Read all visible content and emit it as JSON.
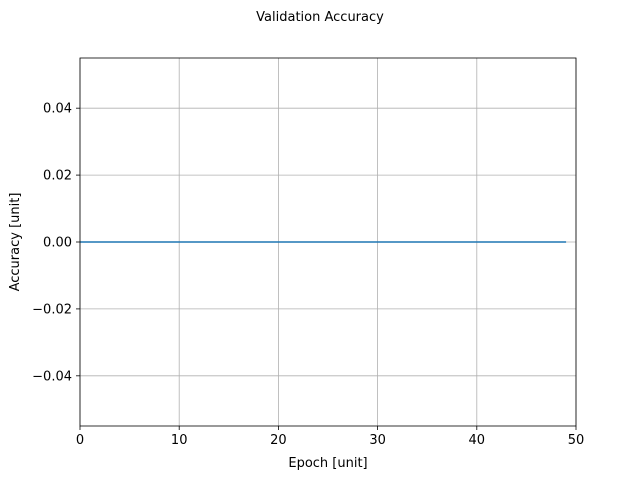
{
  "chart_data": {
    "type": "line",
    "title": "Validation Accuracy",
    "xlabel": "Epoch [unit]",
    "ylabel": "Accuracy [unit]",
    "xlim": [
      0,
      50
    ],
    "ylim": [
      -0.055,
      0.055
    ],
    "xticks": [
      0,
      10,
      20,
      30,
      40,
      50
    ],
    "xtick_labels": [
      "0",
      "10",
      "20",
      "30",
      "40",
      "50"
    ],
    "yticks": [
      -0.04,
      -0.02,
      0.0,
      0.02,
      0.04
    ],
    "ytick_labels": [
      "−0.04",
      "−0.02",
      "0.00",
      "0.02",
      "0.04"
    ],
    "grid": true,
    "series": [
      {
        "color": "#1f77b4",
        "x": [
          0,
          1,
          2,
          3,
          4,
          5,
          6,
          7,
          8,
          9,
          10,
          11,
          12,
          13,
          14,
          15,
          16,
          17,
          18,
          19,
          20,
          21,
          22,
          23,
          24,
          25,
          26,
          27,
          28,
          29,
          30,
          31,
          32,
          33,
          34,
          35,
          36,
          37,
          38,
          39,
          40,
          41,
          42,
          43,
          44,
          45,
          46,
          47,
          48,
          49
        ],
        "y": [
          0,
          0,
          0,
          0,
          0,
          0,
          0,
          0,
          0,
          0,
          0,
          0,
          0,
          0,
          0,
          0,
          0,
          0,
          0,
          0,
          0,
          0,
          0,
          0,
          0,
          0,
          0,
          0,
          0,
          0,
          0,
          0,
          0,
          0,
          0,
          0,
          0,
          0,
          0,
          0,
          0,
          0,
          0,
          0,
          0,
          0,
          0,
          0,
          0,
          0
        ]
      }
    ]
  }
}
